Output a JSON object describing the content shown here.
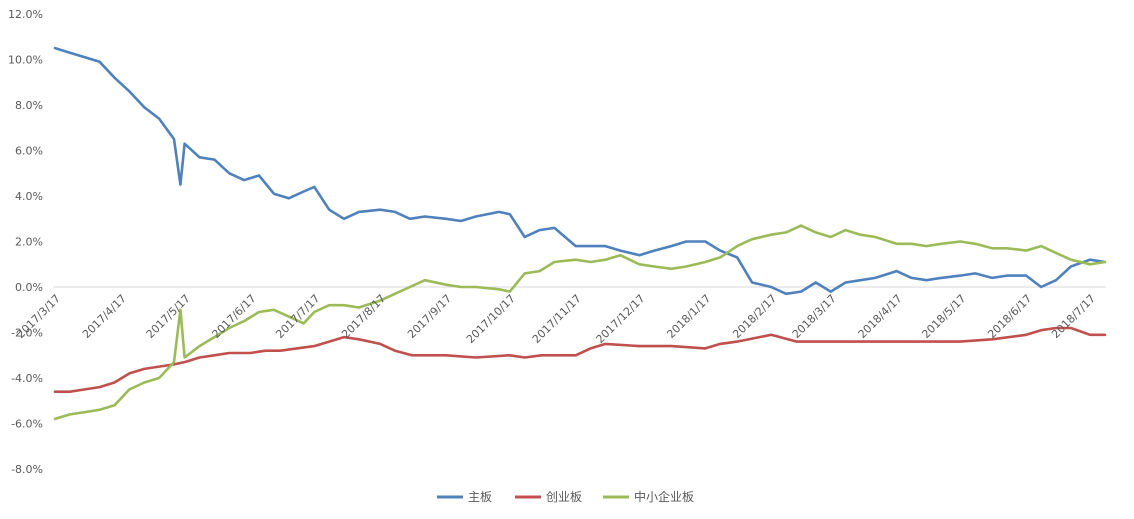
{
  "chart_data": {
    "type": "line",
    "title": "",
    "xlabel": "",
    "ylabel": "",
    "ylim": [
      -8,
      12
    ],
    "y_ticks": [
      12,
      10,
      8,
      6,
      4,
      2,
      0,
      -2,
      -4,
      -6,
      -8
    ],
    "y_tick_labels": [
      "12.0%",
      "10.0%",
      "8.0%",
      "6.0%",
      "4.0%",
      "2.0%",
      "0.0%",
      "-2.0%",
      "-4.0%",
      "-6.0%",
      "-8.0%"
    ],
    "x_tick_labels": [
      "2017/3/17",
      "2017/4/17",
      "2017/5/17",
      "2017/6/17",
      "2017/7/17",
      "2017/8/17",
      "2017/9/17",
      "2017/10/17",
      "2017/11/17",
      "2017/12/17",
      "2018/1/17",
      "2018/2/17",
      "2018/3/17",
      "2018/4/17",
      "2018/5/17",
      "2018/6/17",
      "2018/7/17"
    ],
    "grid": "y-zero-line-only",
    "legend_position": "bottom",
    "series": [
      {
        "name": "主板",
        "color": "#4F81BD",
        "x": [
          "2017/3/17",
          "2017/3/24",
          "2017/3/31",
          "2017/4/7",
          "2017/4/14",
          "2017/4/21",
          "2017/4/28",
          "2017/5/5",
          "2017/5/12",
          "2017/5/15",
          "2017/5/17",
          "2017/5/24",
          "2017/5/31",
          "2017/6/7",
          "2017/6/14",
          "2017/6/21",
          "2017/6/28",
          "2017/7/5",
          "2017/7/12",
          "2017/7/17",
          "2017/7/24",
          "2017/7/31",
          "2017/8/7",
          "2017/8/17",
          "2017/8/24",
          "2017/8/31",
          "2017/9/7",
          "2017/9/17",
          "2017/9/24",
          "2017/10/1",
          "2017/10/12",
          "2017/10/17",
          "2017/10/24",
          "2017/10/31",
          "2017/11/7",
          "2017/11/17",
          "2017/11/24",
          "2017/12/1",
          "2017/12/8",
          "2017/12/17",
          "2017/12/24",
          "2018/1/1",
          "2018/1/8",
          "2018/1/17",
          "2018/1/24",
          "2018/2/1",
          "2018/2/8",
          "2018/2/17",
          "2018/2/24",
          "2018/3/3",
          "2018/3/10",
          "2018/3/17",
          "2018/3/24",
          "2018/3/31",
          "2018/4/7",
          "2018/4/17",
          "2018/4/24",
          "2018/5/1",
          "2018/5/8",
          "2018/5/17",
          "2018/5/24",
          "2018/6/1",
          "2018/6/8",
          "2018/6/17",
          "2018/6/24",
          "2018/7/1",
          "2018/7/8",
          "2018/7/17",
          "2018/7/24"
        ],
        "values": [
          10.5,
          10.3,
          10.1,
          9.9,
          9.2,
          8.6,
          7.9,
          7.4,
          6.5,
          4.5,
          6.3,
          5.7,
          5.6,
          5.0,
          4.7,
          4.9,
          4.1,
          3.9,
          4.2,
          4.4,
          3.4,
          3.0,
          3.3,
          3.4,
          3.3,
          3.0,
          3.1,
          3.0,
          2.9,
          3.1,
          3.3,
          3.2,
          2.2,
          2.5,
          2.6,
          1.8,
          1.8,
          1.8,
          1.6,
          1.4,
          1.6,
          1.8,
          2.0,
          2.0,
          1.6,
          1.3,
          0.2,
          0.0,
          -0.3,
          -0.2,
          0.2,
          -0.2,
          0.2,
          0.3,
          0.4,
          0.7,
          0.4,
          0.3,
          0.4,
          0.5,
          0.6,
          0.4,
          0.5,
          0.5,
          0.0,
          0.3,
          0.9,
          1.2,
          1.1
        ]
      },
      {
        "name": "创业板",
        "color": "#C0504D",
        "x": [
          "2017/3/17",
          "2017/3/24",
          "2017/3/31",
          "2017/4/7",
          "2017/4/14",
          "2017/4/21",
          "2017/4/28",
          "2017/5/5",
          "2017/5/12",
          "2017/5/17",
          "2017/5/24",
          "2017/5/31",
          "2017/6/7",
          "2017/6/17",
          "2017/6/24",
          "2017/7/1",
          "2017/7/17",
          "2017/7/24",
          "2017/7/31",
          "2017/8/7",
          "2017/8/17",
          "2017/8/24",
          "2017/9/1",
          "2017/9/17",
          "2017/10/1",
          "2017/10/17",
          "2017/10/24",
          "2017/11/1",
          "2017/11/17",
          "2017/11/24",
          "2017/12/1",
          "2017/12/17",
          "2018/1/1",
          "2018/1/17",
          "2018/1/24",
          "2018/2/1",
          "2018/2/17",
          "2018/3/1",
          "2018/3/17",
          "2018/4/1",
          "2018/4/17",
          "2018/5/1",
          "2018/5/17",
          "2018/6/1",
          "2018/6/17",
          "2018/6/24",
          "2018/7/1",
          "2018/7/8",
          "2018/7/17",
          "2018/7/24"
        ],
        "values": [
          -4.6,
          -4.6,
          -4.5,
          -4.4,
          -4.2,
          -3.8,
          -3.6,
          -3.5,
          -3.4,
          -3.3,
          -3.1,
          -3.0,
          -2.9,
          -2.9,
          -2.8,
          -2.8,
          -2.6,
          -2.4,
          -2.2,
          -2.3,
          -2.5,
          -2.8,
          -3.0,
          -3.0,
          -3.1,
          -3.0,
          -3.1,
          -3.0,
          -3.0,
          -2.7,
          -2.5,
          -2.6,
          -2.6,
          -2.7,
          -2.5,
          -2.4,
          -2.1,
          -2.4,
          -2.4,
          -2.4,
          -2.4,
          -2.4,
          -2.4,
          -2.3,
          -2.1,
          -1.9,
          -1.8,
          -1.8,
          -2.1,
          -2.1
        ]
      },
      {
        "name": "中小企业板",
        "color": "#9BBB59",
        "x": [
          "2017/3/17",
          "2017/3/24",
          "2017/3/31",
          "2017/4/7",
          "2017/4/14",
          "2017/4/21",
          "2017/4/28",
          "2017/5/5",
          "2017/5/12",
          "2017/5/15",
          "2017/5/17",
          "2017/5/24",
          "2017/5/31",
          "2017/6/7",
          "2017/6/14",
          "2017/6/21",
          "2017/6/28",
          "2017/7/5",
          "2017/7/12",
          "2017/7/17",
          "2017/7/24",
          "2017/7/31",
          "2017/8/7",
          "2017/8/17",
          "2017/8/24",
          "2017/8/31",
          "2017/9/7",
          "2017/9/17",
          "2017/9/24",
          "2017/10/1",
          "2017/10/12",
          "2017/10/17",
          "2017/10/24",
          "2017/10/31",
          "2017/11/7",
          "2017/11/17",
          "2017/11/24",
          "2017/12/1",
          "2017/12/8",
          "2017/12/17",
          "2017/12/24",
          "2018/1/1",
          "2018/1/8",
          "2018/1/17",
          "2018/1/24",
          "2018/2/1",
          "2018/2/8",
          "2018/2/17",
          "2018/2/24",
          "2018/3/3",
          "2018/3/10",
          "2018/3/17",
          "2018/3/24",
          "2018/3/31",
          "2018/4/7",
          "2018/4/17",
          "2018/4/24",
          "2018/5/1",
          "2018/5/8",
          "2018/5/17",
          "2018/5/24",
          "2018/6/1",
          "2018/6/8",
          "2018/6/17",
          "2018/6/24",
          "2018/7/1",
          "2018/7/8",
          "2018/7/17",
          "2018/7/24"
        ],
        "values": [
          -5.8,
          -5.6,
          -5.5,
          -5.4,
          -5.2,
          -4.5,
          -4.2,
          -4.0,
          -3.3,
          -1.0,
          -3.1,
          -2.6,
          -2.2,
          -1.8,
          -1.5,
          -1.1,
          -1.0,
          -1.3,
          -1.6,
          -1.1,
          -0.8,
          -0.8,
          -0.9,
          -0.6,
          -0.3,
          0.0,
          0.3,
          0.1,
          0.0,
          0.0,
          -0.1,
          -0.2,
          0.6,
          0.7,
          1.1,
          1.2,
          1.1,
          1.2,
          1.4,
          1.0,
          0.9,
          0.8,
          0.9,
          1.1,
          1.3,
          1.8,
          2.1,
          2.3,
          2.4,
          2.7,
          2.4,
          2.2,
          2.5,
          2.3,
          2.2,
          1.9,
          1.9,
          1.8,
          1.9,
          2.0,
          1.9,
          1.7,
          1.7,
          1.6,
          1.8,
          1.5,
          1.2,
          1.0,
          1.1
        ]
      }
    ]
  }
}
